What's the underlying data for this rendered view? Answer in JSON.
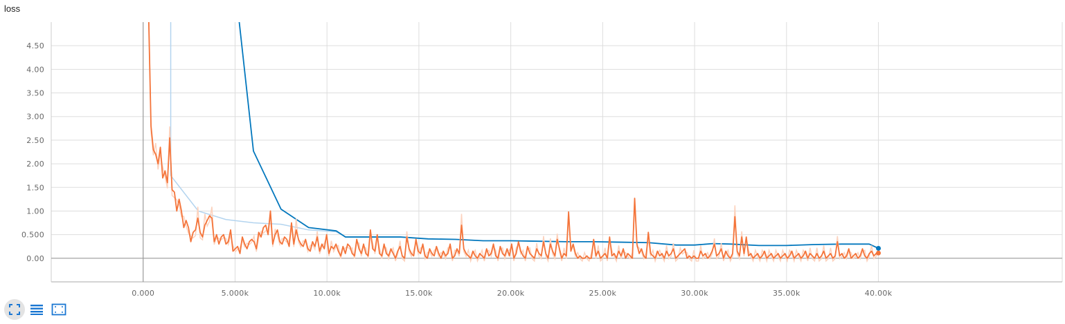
{
  "chart_data": {
    "type": "line",
    "title": "loss",
    "xlabel": "",
    "ylabel": "",
    "xlim": [
      -5000,
      50000
    ],
    "ylim": [
      -0.5,
      5.0
    ],
    "grid": true,
    "x_ticks": [
      {
        "value": 0,
        "label": "0.000"
      },
      {
        "value": 5000,
        "label": "5.000k"
      },
      {
        "value": 10000,
        "label": "10.00k"
      },
      {
        "value": 15000,
        "label": "15.00k"
      },
      {
        "value": 20000,
        "label": "20.00k"
      },
      {
        "value": 25000,
        "label": "25.00k"
      },
      {
        "value": 30000,
        "label": "30.00k"
      },
      {
        "value": 35000,
        "label": "35.00k"
      },
      {
        "value": 40000,
        "label": "40.00k"
      }
    ],
    "y_ticks": [
      {
        "value": 0,
        "label": "0.00"
      },
      {
        "value": 0.5,
        "label": "0.500"
      },
      {
        "value": 1.0,
        "label": "1.00"
      },
      {
        "value": 1.5,
        "label": "1.50"
      },
      {
        "value": 2.0,
        "label": "2.00"
      },
      {
        "value": 2.5,
        "label": "2.50"
      },
      {
        "value": 3.0,
        "label": "3.00"
      },
      {
        "value": 3.5,
        "label": "3.50"
      },
      {
        "value": 4.0,
        "label": "4.00"
      },
      {
        "value": 4.5,
        "label": "4.50"
      }
    ],
    "series": [
      {
        "color": "#0277bd",
        "raw_color": "#b3d4ef",
        "x": [
          5200,
          6000,
          7500,
          9000,
          10500,
          11000,
          12500,
          14000,
          15500,
          17000,
          18500,
          20000,
          21500,
          23000,
          24500,
          26000,
          27500,
          29000,
          30000,
          31000,
          32000,
          33500,
          35000,
          36500,
          38000,
          39500,
          40000
        ],
        "values": [
          5.1,
          2.27,
          1.04,
          0.65,
          0.58,
          0.45,
          0.45,
          0.45,
          0.41,
          0.4,
          0.37,
          0.37,
          0.36,
          0.35,
          0.35,
          0.34,
          0.33,
          0.28,
          0.28,
          0.31,
          0.3,
          0.27,
          0.27,
          0.29,
          0.3,
          0.3,
          0.21
        ],
        "raw_x": [
          1500,
          1500,
          3000,
          4500,
          6000,
          7500,
          9000,
          10500,
          11000
        ],
        "raw_values": [
          5.0,
          1.75,
          1.0,
          0.82,
          0.75,
          0.72,
          0.6,
          0.56,
          0.46
        ]
      },
      {
        "color": "#f4743a",
        "raw_color": "#fcd2bd",
        "values": [
          5.1,
          2.8,
          2.3,
          2.2,
          2.0,
          2.35,
          1.7,
          1.85,
          1.6,
          2.55,
          1.45,
          1.4,
          1.0,
          1.25,
          1.0,
          0.65,
          0.8,
          0.65,
          0.35,
          0.55,
          0.6,
          0.85,
          0.55,
          0.45,
          0.7,
          0.8,
          0.9,
          0.85,
          0.35,
          0.5,
          0.3,
          0.45,
          0.5,
          0.3,
          0.35,
          0.6,
          0.15,
          0.2,
          0.25,
          0.1,
          0.45,
          0.3,
          0.2,
          0.35,
          0.4,
          0.35,
          0.2,
          0.55,
          0.45,
          0.65,
          0.7,
          0.5,
          1.0,
          0.3,
          0.5,
          0.6,
          0.35,
          0.3,
          0.45,
          0.4,
          0.25,
          0.75,
          0.3,
          0.6,
          0.4,
          0.3,
          0.25,
          0.4,
          0.2,
          0.15,
          0.35,
          0.25,
          0.45,
          0.15,
          0.3,
          0.2,
          0.5,
          0.1,
          0.25,
          0.2,
          0.3,
          0.15,
          0.05,
          0.25,
          0.1
        ],
        "tail_values": [
          0.3,
          0.25,
          0.1,
          0.05,
          0.4,
          0.2,
          0.1,
          0.3,
          0.1,
          0.05,
          0.6,
          0.2,
          0.15,
          0.5,
          0.1,
          0.05,
          0.3,
          0.1,
          0.05,
          0.2,
          0.1,
          0.0,
          0.15,
          0.25,
          0.05,
          0.0,
          0.45,
          0.2,
          0.1,
          0.05,
          0.4,
          0.15,
          0.1,
          0.3,
          0.05,
          0.0,
          0.2,
          0.1,
          0.05,
          0.25,
          0.1,
          0.0,
          0.15,
          0.05,
          0.1,
          0.3,
          0.0,
          0.05,
          0.2,
          0.1,
          0.7,
          0.2,
          0.1,
          0.05,
          0.0,
          0.15,
          0.05,
          0.0,
          0.1,
          0.05,
          0.0,
          0.2,
          0.05,
          0.1,
          0.3,
          0.05,
          0.0,
          0.25,
          0.1,
          0.05,
          0.2,
          0.05,
          0.3,
          0.0,
          0.1,
          0.35,
          0.15,
          0.05,
          0.0,
          0.25,
          0.1,
          0.05,
          0.0,
          0.2,
          0.1,
          0.05,
          0.35,
          0.1,
          0.0,
          0.3,
          0.15,
          0.05,
          0.4,
          0.2,
          0.0,
          0.1,
          0.05,
          0.98,
          0.15,
          0.3,
          0.1,
          0.0,
          0.05,
          0.0,
          0.0,
          0.05,
          0.0,
          0.0,
          0.4,
          0.05,
          0.15,
          0.0,
          0.05,
          0.1,
          0.0,
          0.45,
          0.05,
          0.1,
          0.0,
          0.15,
          0.05,
          0.2,
          0.0,
          0.1,
          0.05,
          0.0,
          1.27,
          0.3,
          0.1,
          0.2,
          0.05,
          0.0,
          0.55,
          0.1,
          0.05,
          0.0,
          0.15,
          0.05,
          0.1,
          0.0,
          0.15,
          0.05,
          0.1,
          0.2,
          0.0,
          0.05,
          0.1,
          0.15,
          0.2,
          0.0,
          0.05,
          0.0,
          0.05,
          0.0,
          0.0,
          0.15,
          0.05,
          0.1,
          0.0,
          0.05,
          0.15,
          0.3,
          0.05,
          0.1,
          0.2,
          0.0,
          0.15,
          0.05,
          0.0,
          0.1,
          0.88,
          0.15,
          0.05,
          0.45,
          0.1,
          0.45,
          0.05,
          0.1,
          0.0,
          0.05,
          0.1,
          0.0,
          0.05,
          0.15,
          0.0,
          0.05,
          0.1,
          0.0,
          0.05,
          0.1,
          0.0,
          0.05,
          0.1,
          0.0,
          0.05,
          0.15,
          0.0,
          0.05,
          0.1,
          0.0,
          0.05,
          0.15,
          0.0,
          0.1,
          0.05,
          0.0,
          0.1,
          0.0,
          0.05,
          0.15,
          0.0,
          0.05,
          0.1,
          0.0,
          0.05,
          0.35,
          0.05,
          0.1,
          0.0,
          0.05,
          0.2,
          0.0,
          0.05,
          0.1,
          0.0,
          0.05,
          0.2,
          0.05,
          0.0,
          0.1,
          0.15,
          0.05,
          0.1,
          0.12
        ]
      }
    ],
    "end_markers": [
      {
        "series": 0,
        "x": 40000,
        "y": 0.21
      },
      {
        "series": 1,
        "x": 40000,
        "y": 0.11
      }
    ]
  },
  "toolbar": {
    "icons": [
      "fit-domain-icon",
      "list-icon",
      "selection-icon"
    ]
  }
}
